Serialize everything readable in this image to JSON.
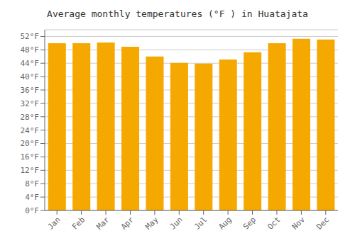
{
  "chart_data": {
    "type": "bar",
    "title": "Average monthly temperatures (°F ) in Huatajata",
    "categories": [
      "Jan",
      "Feb",
      "Mar",
      "Apr",
      "May",
      "Jun",
      "Jul",
      "Aug",
      "Sep",
      "Oct",
      "Nov",
      "Dec"
    ],
    "values": [
      50.0,
      50.0,
      50.2,
      48.9,
      46.0,
      44.1,
      43.9,
      45.1,
      47.3,
      50.0,
      51.3,
      51.1
    ],
    "color": "#F5A800",
    "ylim": [
      0,
      54
    ],
    "yticks": [
      {
        "value": 0,
        "label": "0°F"
      },
      {
        "value": 4,
        "label": "4°F"
      },
      {
        "value": 8,
        "label": "8°F"
      },
      {
        "value": 12,
        "label": "12°F"
      },
      {
        "value": 16,
        "label": "16°F"
      },
      {
        "value": 20,
        "label": "20°F"
      },
      {
        "value": 24,
        "label": "24°F"
      },
      {
        "value": 28,
        "label": "28°F"
      },
      {
        "value": 32,
        "label": "32°F"
      },
      {
        "value": 36,
        "label": "36°F"
      },
      {
        "value": 40,
        "label": "40°F"
      },
      {
        "value": 44,
        "label": "44°F"
      },
      {
        "value": 48,
        "label": "48°F"
      },
      {
        "value": 52,
        "label": "52°F"
      }
    ],
    "grid": true
  }
}
